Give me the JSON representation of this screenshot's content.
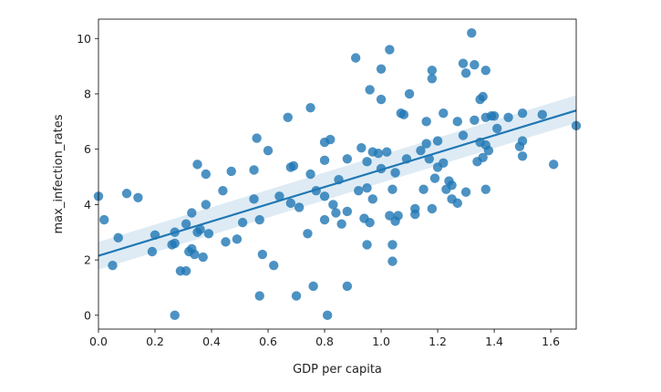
{
  "chart_data": {
    "type": "scatter",
    "title": "",
    "xlabel": "GDP per capita",
    "ylabel": "max_infection_rates",
    "xlim": [
      0.0,
      1.69
    ],
    "ylim": [
      -0.5,
      10.7
    ],
    "xticks": [
      0.0,
      0.2,
      0.4,
      0.6,
      0.8,
      1.0,
      1.2,
      1.4,
      1.6
    ],
    "xtick_labels": [
      "0.0",
      "0.2",
      "0.4",
      "0.6",
      "0.8",
      "1.0",
      "1.2",
      "1.4",
      "1.6"
    ],
    "yticks": [
      0,
      2,
      4,
      6,
      8,
      10
    ],
    "ytick_labels": [
      "0",
      "2",
      "4",
      "6",
      "8",
      "10"
    ],
    "grid": false,
    "legend": "none",
    "color": "#1f77b4",
    "points": [
      [
        0.0,
        4.3
      ],
      [
        0.02,
        3.45
      ],
      [
        0.05,
        1.8
      ],
      [
        0.07,
        2.8
      ],
      [
        0.1,
        4.4
      ],
      [
        0.14,
        4.25
      ],
      [
        0.19,
        2.3
      ],
      [
        0.2,
        2.9
      ],
      [
        0.26,
        2.55
      ],
      [
        0.27,
        3.0
      ],
      [
        0.27,
        2.6
      ],
      [
        0.27,
        0.0
      ],
      [
        0.29,
        1.6
      ],
      [
        0.31,
        3.3
      ],
      [
        0.31,
        1.6
      ],
      [
        0.32,
        2.3
      ],
      [
        0.33,
        3.7
      ],
      [
        0.33,
        2.4
      ],
      [
        0.34,
        2.2
      ],
      [
        0.35,
        5.45
      ],
      [
        0.35,
        3.0
      ],
      [
        0.36,
        3.1
      ],
      [
        0.37,
        2.1
      ],
      [
        0.38,
        5.1
      ],
      [
        0.38,
        4.0
      ],
      [
        0.39,
        2.95
      ],
      [
        0.44,
        4.5
      ],
      [
        0.45,
        2.65
      ],
      [
        0.47,
        5.2
      ],
      [
        0.49,
        2.75
      ],
      [
        0.51,
        3.35
      ],
      [
        0.55,
        5.25
      ],
      [
        0.55,
        4.2
      ],
      [
        0.56,
        6.4
      ],
      [
        0.57,
        3.45
      ],
      [
        0.57,
        0.7
      ],
      [
        0.58,
        2.2
      ],
      [
        0.6,
        5.95
      ],
      [
        0.62,
        1.8
      ],
      [
        0.64,
        4.3
      ],
      [
        0.67,
        7.15
      ],
      [
        0.68,
        4.05
      ],
      [
        0.68,
        5.35
      ],
      [
        0.69,
        5.4
      ],
      [
        0.7,
        0.7
      ],
      [
        0.71,
        3.9
      ],
      [
        0.74,
        2.95
      ],
      [
        0.75,
        5.1
      ],
      [
        0.75,
        7.5
      ],
      [
        0.76,
        1.05
      ],
      [
        0.77,
        4.5
      ],
      [
        0.8,
        3.45
      ],
      [
        0.8,
        5.6
      ],
      [
        0.8,
        4.3
      ],
      [
        0.8,
        6.25
      ],
      [
        0.81,
        0.0
      ],
      [
        0.82,
        6.35
      ],
      [
        0.83,
        4.0
      ],
      [
        0.84,
        3.7
      ],
      [
        0.85,
        4.9
      ],
      [
        0.86,
        3.3
      ],
      [
        0.88,
        1.05
      ],
      [
        0.88,
        3.75
      ],
      [
        0.88,
        5.65
      ],
      [
        0.91,
        9.3
      ],
      [
        0.92,
        4.5
      ],
      [
        0.93,
        6.05
      ],
      [
        0.94,
        3.5
      ],
      [
        0.95,
        5.55
      ],
      [
        0.95,
        4.6
      ],
      [
        0.95,
        2.55
      ],
      [
        0.96,
        8.15
      ],
      [
        0.96,
        3.35
      ],
      [
        0.97,
        4.2
      ],
      [
        0.97,
        5.9
      ],
      [
        0.99,
        5.85
      ],
      [
        1.0,
        8.9
      ],
      [
        1.0,
        7.8
      ],
      [
        1.0,
        5.3
      ],
      [
        1.02,
        5.9
      ],
      [
        1.03,
        9.6
      ],
      [
        1.03,
        3.6
      ],
      [
        1.04,
        4.55
      ],
      [
        1.04,
        2.55
      ],
      [
        1.04,
        1.95
      ],
      [
        1.05,
        5.15
      ],
      [
        1.05,
        3.4
      ],
      [
        1.06,
        3.6
      ],
      [
        1.07,
        7.3
      ],
      [
        1.08,
        7.25
      ],
      [
        1.09,
        5.65
      ],
      [
        1.1,
        8.0
      ],
      [
        1.12,
        3.85
      ],
      [
        1.12,
        3.65
      ],
      [
        1.14,
        5.95
      ],
      [
        1.15,
        4.55
      ],
      [
        1.16,
        7.0
      ],
      [
        1.16,
        6.2
      ],
      [
        1.17,
        5.65
      ],
      [
        1.18,
        8.55
      ],
      [
        1.18,
        8.85
      ],
      [
        1.18,
        3.85
      ],
      [
        1.19,
        4.95
      ],
      [
        1.2,
        6.3
      ],
      [
        1.2,
        5.35
      ],
      [
        1.22,
        5.5
      ],
      [
        1.22,
        7.3
      ],
      [
        1.23,
        4.55
      ],
      [
        1.24,
        4.85
      ],
      [
        1.25,
        4.2
      ],
      [
        1.25,
        4.7
      ],
      [
        1.27,
        7.0
      ],
      [
        1.27,
        4.05
      ],
      [
        1.29,
        9.1
      ],
      [
        1.29,
        6.5
      ],
      [
        1.3,
        8.75
      ],
      [
        1.3,
        4.45
      ],
      [
        1.32,
        10.2
      ],
      [
        1.33,
        7.05
      ],
      [
        1.33,
        9.05
      ],
      [
        1.34,
        5.55
      ],
      [
        1.35,
        6.25
      ],
      [
        1.35,
        7.8
      ],
      [
        1.36,
        7.9
      ],
      [
        1.36,
        5.7
      ],
      [
        1.37,
        8.85
      ],
      [
        1.37,
        6.15
      ],
      [
        1.37,
        7.15
      ],
      [
        1.37,
        4.55
      ],
      [
        1.38,
        5.95
      ],
      [
        1.39,
        7.2
      ],
      [
        1.4,
        7.2
      ],
      [
        1.41,
        6.75
      ],
      [
        1.45,
        7.15
      ],
      [
        1.49,
        6.1
      ],
      [
        1.5,
        5.75
      ],
      [
        1.5,
        6.3
      ],
      [
        1.5,
        7.3
      ],
      [
        1.57,
        7.25
      ],
      [
        1.61,
        5.45
      ],
      [
        1.69,
        6.85
      ]
    ],
    "regression": {
      "x": [
        0.0,
        1.69
      ],
      "y": [
        2.15,
        7.4
      ],
      "ci_low": [
        1.65,
        6.95
      ],
      "ci_high": [
        2.65,
        7.95
      ]
    }
  }
}
